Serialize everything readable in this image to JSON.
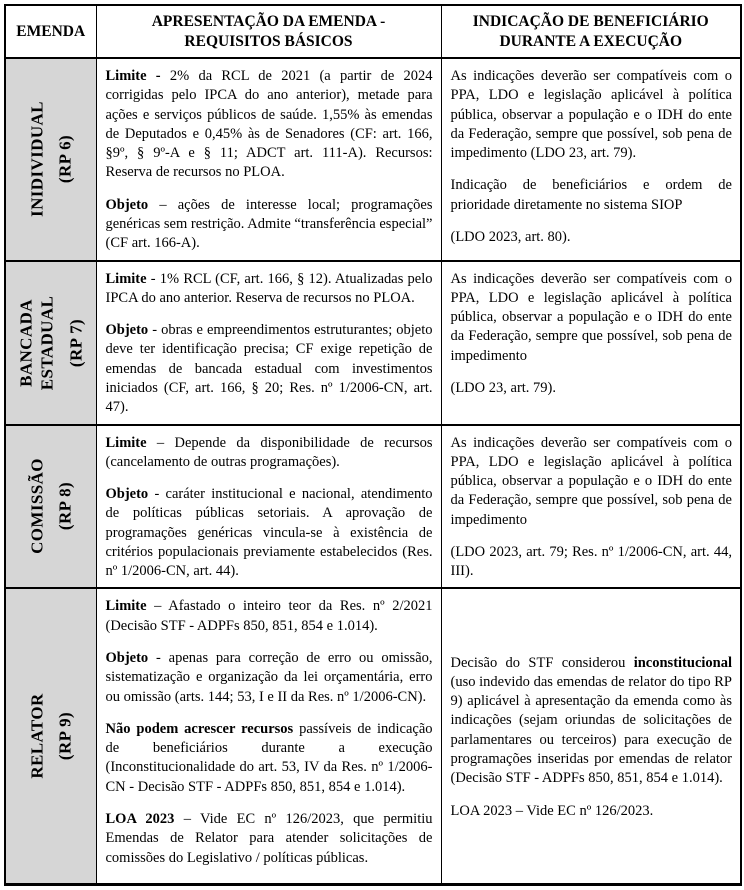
{
  "colors": {
    "label_bg": "#d6d6d6",
    "border": "#000000",
    "text": "#000000",
    "page_bg": "#ffffff"
  },
  "table": {
    "headers": {
      "emenda": "EMENDA",
      "apresentacao": "APRESENTAÇÃO DA EMENDA -\nREQUISITOS BÁSICOS",
      "indicacao": "INDICAÇÃO DE BENEFICIÁRIO\nDURANTE A EXECUÇÃO"
    },
    "rows": [
      {
        "label": "INIDIVIDUAL",
        "rp": "(RP 6)",
        "apresentacao": [
          [
            {
              "t": "Limite - ",
              "b": true
            },
            {
              "t": "2% da RCL de 2021 (a partir de 2024 corrigidas pelo IPCA do ano anterior), metade para ações e serviços públicos de saúde. 1,55% às emendas de Deputados e 0,45% às de Senadores (CF: art. 166, §9º, § 9º-A e § 11; ADCT art. 111-A). Recursos: Reserva de recursos no PLOA.",
              "b": false
            }
          ],
          [
            {
              "t": "Objeto",
              "b": true
            },
            {
              "t": " – ações de interesse local; programações genéricas sem restrição. Admite “transferência especial” (CF art. 166-A).",
              "b": false
            }
          ]
        ],
        "indicacao": [
          [
            {
              "t": "As indicações deverão ser compatíveis com o PPA, LDO e legislação aplicável à política pública, observar a população e o IDH do ente da Federação, sempre que possível, sob pena de impedimento (LDO 23, art. 79).",
              "b": false
            }
          ],
          [
            {
              "t": "Indicação de beneficiários e ordem de prioridade diretamente no sistema SIOP",
              "b": false
            }
          ],
          [
            {
              "t": "(LDO 2023, art. 80).",
              "b": false
            }
          ]
        ]
      },
      {
        "label": "BANCADA\nESTADUAL",
        "rp": "(RP 7)",
        "apresentacao": [
          [
            {
              "t": "Limite",
              "b": true
            },
            {
              "t": " - 1% RCL (CF, art. 166, § 12). Atualizadas pelo IPCA do ano anterior. Reserva de recursos no PLOA.",
              "b": false
            }
          ],
          [
            {
              "t": "Objeto",
              "b": true
            },
            {
              "t": " - obras e empreendimentos estruturantes; objeto deve ter identificação precisa; CF exige repetição de emendas de bancada estadual com investimentos iniciados (CF, art. 166, § 20; Res. nº 1/2006-CN, art. 47).",
              "b": false
            }
          ]
        ],
        "indicacao": [
          [
            {
              "t": "As indicações deverão ser compatíveis com o PPA, LDO e legislação aplicável à política pública, observar a população e o IDH do ente da Federação, sempre que possível, sob pena de impedimento",
              "b": false
            }
          ],
          [
            {
              "t": " (LDO 23, art. 79).",
              "b": false
            }
          ]
        ]
      },
      {
        "label": "COMISSÃO",
        "rp": "(RP 8)",
        "apresentacao": [
          [
            {
              "t": "Limite",
              "b": true
            },
            {
              "t": " – Depende da disponibilidade de recursos (cancelamento de outras programações).",
              "b": false
            }
          ],
          [
            {
              "t": "Objeto",
              "b": true
            },
            {
              "t": " - caráter institucional e nacional, atendimento de políticas públicas setoriais. A aprovação de programações genéricas vincula-se à existência de critérios populacionais previamente estabelecidos (Res. nº 1/2006-CN, art. 44).",
              "b": false
            }
          ]
        ],
        "indicacao": [
          [
            {
              "t": "As indicações deverão ser compatíveis com o PPA, LDO e legislação aplicável à política pública, observar a população e o IDH do ente da Federação, sempre que possível, sob pena de impedimento",
              "b": false
            }
          ],
          [
            {
              "t": "(LDO 2023, art. 79; Res. nº 1/2006-CN, art. 44, III).",
              "b": false
            }
          ]
        ]
      },
      {
        "label": "RELATOR",
        "rp": "(RP 9)",
        "apresentacao": [
          [
            {
              "t": "Limite",
              "b": true
            },
            {
              "t": " – Afastado o inteiro teor da Res. nº 2/2021 (Decisão STF - ADPFs 850, 851, 854 e 1.014).",
              "b": false
            }
          ],
          [
            {
              "t": "Objeto",
              "b": true
            },
            {
              "t": " - apenas para correção de erro ou omissão, sistematização e organização da lei orçamentária, erro ou omissão (arts. 144; 53, I e II da Res. nº 1/2006-CN).",
              "b": false
            }
          ],
          [
            {
              "t": "Não podem acrescer recursos",
              "b": true
            },
            {
              "t": " passíveis de indicação de beneficiários durante a execução (Inconstitucionalidade do art. 53, IV da Res. nº 1/2006-CN - Decisão STF - ADPFs 850, 851, 854 e 1.014).",
              "b": false
            }
          ],
          [
            {
              "t": "LOA 2023",
              "b": true
            },
            {
              "t": " – Vide EC nº 126/2023, que permitiu Emendas de Relator para atender solicitações de comissões do Legislativo / políticas públicas.",
              "b": false
            }
          ]
        ],
        "indicacao": [
          [
            {
              "t": "Decisão do STF considerou ",
              "b": false
            },
            {
              "t": "inconstitucional",
              "b": true
            },
            {
              "t": " (uso indevido das emendas de relator do tipo RP 9) aplicável à apresentação da emenda como às indicações (sejam oriundas de solicitações de parlamentares ou terceiros) para execução de programações inseridas por emendas de relator (Decisão STF - ADPFs 850, 851, 854 e 1.014).",
              "b": false
            }
          ],
          [
            {
              "t": "LOA 2023 – Vide EC nº 126/2023.",
              "b": false
            }
          ]
        ]
      }
    ]
  }
}
